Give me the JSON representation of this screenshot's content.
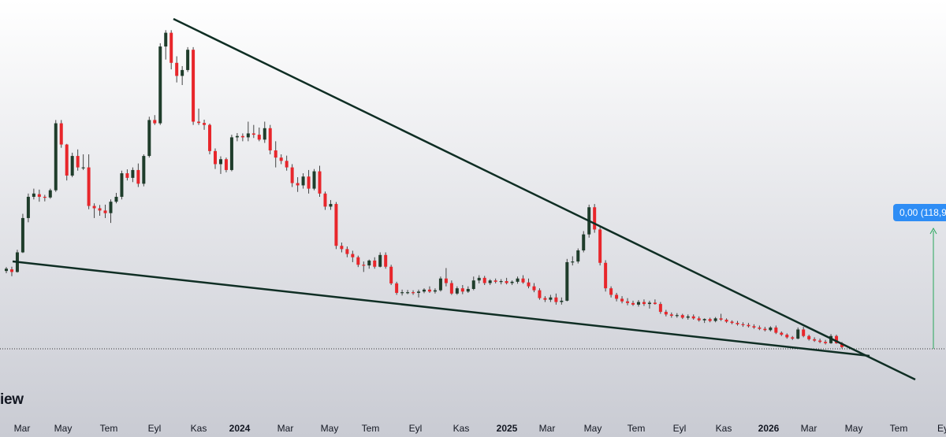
{
  "chart_data": {
    "type": "candlestick",
    "colors": {
      "up": "#1f3d2b",
      "down": "#e8262b",
      "trendline": "#0f2e24",
      "marker": "#27a65a"
    },
    "x_axis": {
      "ticks": [
        "Mar",
        "May",
        "Tem",
        "Eyl",
        "Kas",
        "2024",
        "Mar",
        "May",
        "Tem",
        "Eyl",
        "Kas",
        "2025",
        "Mar",
        "May",
        "Tem",
        "Eyl",
        "Kas",
        "2026",
        "Mar",
        "May",
        "Tem",
        "Ey"
      ],
      "bold_ticks": [
        "2024",
        "2025",
        "2026"
      ]
    },
    "price_badge": "0,00 (118,9",
    "watermark": "iew",
    "reference_level_dotted": true,
    "trendlines": [
      {
        "name": "upper",
        "from": [
          0.183,
          0.975
        ],
        "to": [
          0.967,
          0.0
        ]
      },
      {
        "name": "lower",
        "from": [
          0.015,
          0.295
        ],
        "to": [
          0.918,
          0.0
        ]
      }
    ],
    "candles": [
      [
        0.243,
        0.255,
        0.236,
        0.25
      ],
      [
        0.248,
        0.256,
        0.227,
        0.24
      ],
      [
        0.24,
        0.308,
        0.238,
        0.3
      ],
      [
        0.3,
        0.418,
        0.298,
        0.405
      ],
      [
        0.405,
        0.48,
        0.392,
        0.47
      ],
      [
        0.47,
        0.495,
        0.462,
        0.48
      ],
      [
        0.478,
        0.492,
        0.455,
        0.47
      ],
      [
        0.47,
        0.476,
        0.456,
        0.468
      ],
      [
        0.468,
        0.495,
        0.464,
        0.49
      ],
      [
        0.49,
        0.705,
        0.485,
        0.695
      ],
      [
        0.695,
        0.705,
        0.62,
        0.63
      ],
      [
        0.63,
        0.632,
        0.52,
        0.535
      ],
      [
        0.535,
        0.605,
        0.53,
        0.595
      ],
      [
        0.595,
        0.615,
        0.55,
        0.56
      ],
      [
        0.56,
        0.6,
        0.552,
        0.56
      ],
      [
        0.56,
        0.6,
        0.432,
        0.442
      ],
      [
        0.442,
        0.45,
        0.405,
        0.435
      ],
      [
        0.435,
        0.445,
        0.412,
        0.428
      ],
      [
        0.428,
        0.446,
        0.405,
        0.42
      ],
      [
        0.42,
        0.462,
        0.39,
        0.455
      ],
      [
        0.455,
        0.482,
        0.45,
        0.47
      ],
      [
        0.47,
        0.55,
        0.462,
        0.542
      ],
      [
        0.542,
        0.554,
        0.52,
        0.528
      ],
      [
        0.528,
        0.56,
        0.515,
        0.552
      ],
      [
        0.552,
        0.572,
        0.5,
        0.51
      ],
      [
        0.51,
        0.6,
        0.502,
        0.595
      ],
      [
        0.595,
        0.715,
        0.59,
        0.705
      ],
      [
        0.705,
        0.72,
        0.69,
        0.695
      ],
      [
        0.695,
        0.94,
        0.69,
        0.93
      ],
      [
        0.93,
        0.98,
        0.89,
        0.972
      ],
      [
        0.972,
        0.98,
        0.86,
        0.88
      ],
      [
        0.88,
        0.9,
        0.82,
        0.84
      ],
      [
        0.84,
        0.87,
        0.812,
        0.858
      ],
      [
        0.858,
        0.928,
        0.852,
        0.92
      ],
      [
        0.92,
        0.928,
        0.69,
        0.7
      ],
      [
        0.7,
        0.74,
        0.69,
        0.696
      ],
      [
        0.696,
        0.706,
        0.675,
        0.69
      ],
      [
        0.69,
        0.694,
        0.6,
        0.61
      ],
      [
        0.61,
        0.618,
        0.555,
        0.57
      ],
      [
        0.57,
        0.594,
        0.54,
        0.585
      ],
      [
        0.585,
        0.59,
        0.545,
        0.552
      ],
      [
        0.552,
        0.66,
        0.548,
        0.652
      ],
      [
        0.652,
        0.665,
        0.64,
        0.656
      ],
      [
        0.656,
        0.664,
        0.64,
        0.652
      ],
      [
        0.652,
        0.7,
        0.64,
        0.664
      ],
      [
        0.664,
        0.69,
        0.65,
        0.66
      ],
      [
        0.66,
        0.682,
        0.64,
        0.645
      ],
      [
        0.645,
        0.7,
        0.635,
        0.68
      ],
      [
        0.68,
        0.69,
        0.6,
        0.612
      ],
      [
        0.612,
        0.64,
        0.56,
        0.59
      ],
      [
        0.59,
        0.6,
        0.57,
        0.58
      ],
      [
        0.58,
        0.596,
        0.55,
        0.56
      ],
      [
        0.56,
        0.57,
        0.5,
        0.512
      ],
      [
        0.512,
        0.53,
        0.485,
        0.505
      ],
      [
        0.505,
        0.542,
        0.495,
        0.532
      ],
      [
        0.532,
        0.552,
        0.48,
        0.495
      ],
      [
        0.495,
        0.555,
        0.49,
        0.548
      ],
      [
        0.548,
        0.565,
        0.47,
        0.48
      ],
      [
        0.48,
        0.486,
        0.43,
        0.44
      ],
      [
        0.44,
        0.46,
        0.43,
        0.448
      ],
      [
        0.448,
        0.454,
        0.31,
        0.32
      ],
      [
        0.32,
        0.33,
        0.3,
        0.31
      ],
      [
        0.31,
        0.318,
        0.285,
        0.295
      ],
      [
        0.295,
        0.305,
        0.27,
        0.285
      ],
      [
        0.285,
        0.29,
        0.255,
        0.262
      ],
      [
        0.262,
        0.272,
        0.24,
        0.26
      ],
      [
        0.26,
        0.278,
        0.25,
        0.275
      ],
      [
        0.275,
        0.285,
        0.25,
        0.256
      ],
      [
        0.256,
        0.3,
        0.254,
        0.292
      ],
      [
        0.292,
        0.3,
        0.25,
        0.256
      ],
      [
        0.256,
        0.262,
        0.2,
        0.205
      ],
      [
        0.205,
        0.21,
        0.17,
        0.176
      ],
      [
        0.176,
        0.186,
        0.168,
        0.178
      ],
      [
        0.178,
        0.185,
        0.172,
        0.178
      ],
      [
        0.178,
        0.184,
        0.17,
        0.176
      ],
      [
        0.176,
        0.186,
        0.162,
        0.18
      ],
      [
        0.18,
        0.19,
        0.175,
        0.186
      ],
      [
        0.186,
        0.196,
        0.176,
        0.18
      ],
      [
        0.18,
        0.19,
        0.174,
        0.184
      ],
      [
        0.184,
        0.226,
        0.18,
        0.22
      ],
      [
        0.22,
        0.252,
        0.196,
        0.206
      ],
      [
        0.206,
        0.214,
        0.17,
        0.174
      ],
      [
        0.174,
        0.196,
        0.17,
        0.19
      ],
      [
        0.19,
        0.2,
        0.172,
        0.18
      ],
      [
        0.18,
        0.196,
        0.176,
        0.188
      ],
      [
        0.188,
        0.226,
        0.184,
        0.214
      ],
      [
        0.214,
        0.23,
        0.205,
        0.222
      ],
      [
        0.222,
        0.228,
        0.2,
        0.206
      ],
      [
        0.206,
        0.218,
        0.2,
        0.214
      ],
      [
        0.214,
        0.22,
        0.205,
        0.21
      ],
      [
        0.21,
        0.218,
        0.202,
        0.212
      ],
      [
        0.212,
        0.222,
        0.202,
        0.206
      ],
      [
        0.206,
        0.214,
        0.2,
        0.21
      ],
      [
        0.21,
        0.226,
        0.204,
        0.22
      ],
      [
        0.22,
        0.23,
        0.204,
        0.208
      ],
      [
        0.208,
        0.22,
        0.19,
        0.196
      ],
      [
        0.196,
        0.206,
        0.178,
        0.184
      ],
      [
        0.184,
        0.19,
        0.155,
        0.16
      ],
      [
        0.16,
        0.166,
        0.148,
        0.155
      ],
      [
        0.155,
        0.17,
        0.148,
        0.162
      ],
      [
        0.162,
        0.174,
        0.14,
        0.148
      ],
      [
        0.148,
        0.162,
        0.14,
        0.152
      ],
      [
        0.152,
        0.28,
        0.15,
        0.27
      ],
      [
        0.27,
        0.288,
        0.26,
        0.272
      ],
      [
        0.272,
        0.312,
        0.266,
        0.306
      ],
      [
        0.306,
        0.365,
        0.3,
        0.355
      ],
      [
        0.355,
        0.446,
        0.345,
        0.438
      ],
      [
        0.438,
        0.448,
        0.36,
        0.37
      ],
      [
        0.37,
        0.38,
        0.26,
        0.268
      ],
      [
        0.268,
        0.276,
        0.18,
        0.19
      ],
      [
        0.19,
        0.196,
        0.162,
        0.17
      ],
      [
        0.17,
        0.176,
        0.15,
        0.158
      ],
      [
        0.158,
        0.166,
        0.144,
        0.15
      ],
      [
        0.15,
        0.16,
        0.138,
        0.145
      ],
      [
        0.145,
        0.152,
        0.136,
        0.14
      ],
      [
        0.14,
        0.154,
        0.134,
        0.148
      ],
      [
        0.148,
        0.156,
        0.136,
        0.142
      ],
      [
        0.142,
        0.152,
        0.128,
        0.146
      ],
      [
        0.146,
        0.156,
        0.14,
        0.142
      ],
      [
        0.142,
        0.148,
        0.112,
        0.118
      ],
      [
        0.118,
        0.124,
        0.104,
        0.11
      ],
      [
        0.11,
        0.116,
        0.1,
        0.106
      ],
      [
        0.106,
        0.114,
        0.1,
        0.108
      ],
      [
        0.108,
        0.112,
        0.096,
        0.1
      ],
      [
        0.1,
        0.11,
        0.094,
        0.104
      ],
      [
        0.104,
        0.11,
        0.094,
        0.098
      ],
      [
        0.098,
        0.104,
        0.088,
        0.092
      ],
      [
        0.092,
        0.098,
        0.084,
        0.096
      ],
      [
        0.096,
        0.1,
        0.086,
        0.09
      ],
      [
        0.09,
        0.102,
        0.086,
        0.098
      ],
      [
        0.098,
        0.112,
        0.09,
        0.094
      ],
      [
        0.094,
        0.098,
        0.084,
        0.088
      ],
      [
        0.088,
        0.092,
        0.08,
        0.084
      ],
      [
        0.084,
        0.09,
        0.076,
        0.08
      ],
      [
        0.08,
        0.086,
        0.072,
        0.078
      ],
      [
        0.078,
        0.084,
        0.07,
        0.074
      ],
      [
        0.074,
        0.08,
        0.066,
        0.07
      ],
      [
        0.07,
        0.076,
        0.062,
        0.066
      ],
      [
        0.066,
        0.072,
        0.058,
        0.062
      ],
      [
        0.062,
        0.074,
        0.058,
        0.07
      ],
      [
        0.07,
        0.076,
        0.05,
        0.054
      ],
      [
        0.054,
        0.058,
        0.044,
        0.048
      ],
      [
        0.048,
        0.052,
        0.036,
        0.04
      ],
      [
        0.04,
        0.044,
        0.032,
        0.036
      ],
      [
        0.036,
        0.07,
        0.034,
        0.064
      ],
      [
        0.064,
        0.072,
        0.04,
        0.044
      ],
      [
        0.044,
        0.048,
        0.03,
        0.034
      ],
      [
        0.034,
        0.04,
        0.026,
        0.03
      ],
      [
        0.03,
        0.036,
        0.022,
        0.026
      ],
      [
        0.026,
        0.032,
        0.018,
        0.022
      ],
      [
        0.022,
        0.05,
        0.02,
        0.044
      ],
      [
        0.044,
        0.048,
        0.02,
        0.022
      ],
      [
        0.022,
        0.026,
        0.006,
        0.01
      ]
    ]
  }
}
